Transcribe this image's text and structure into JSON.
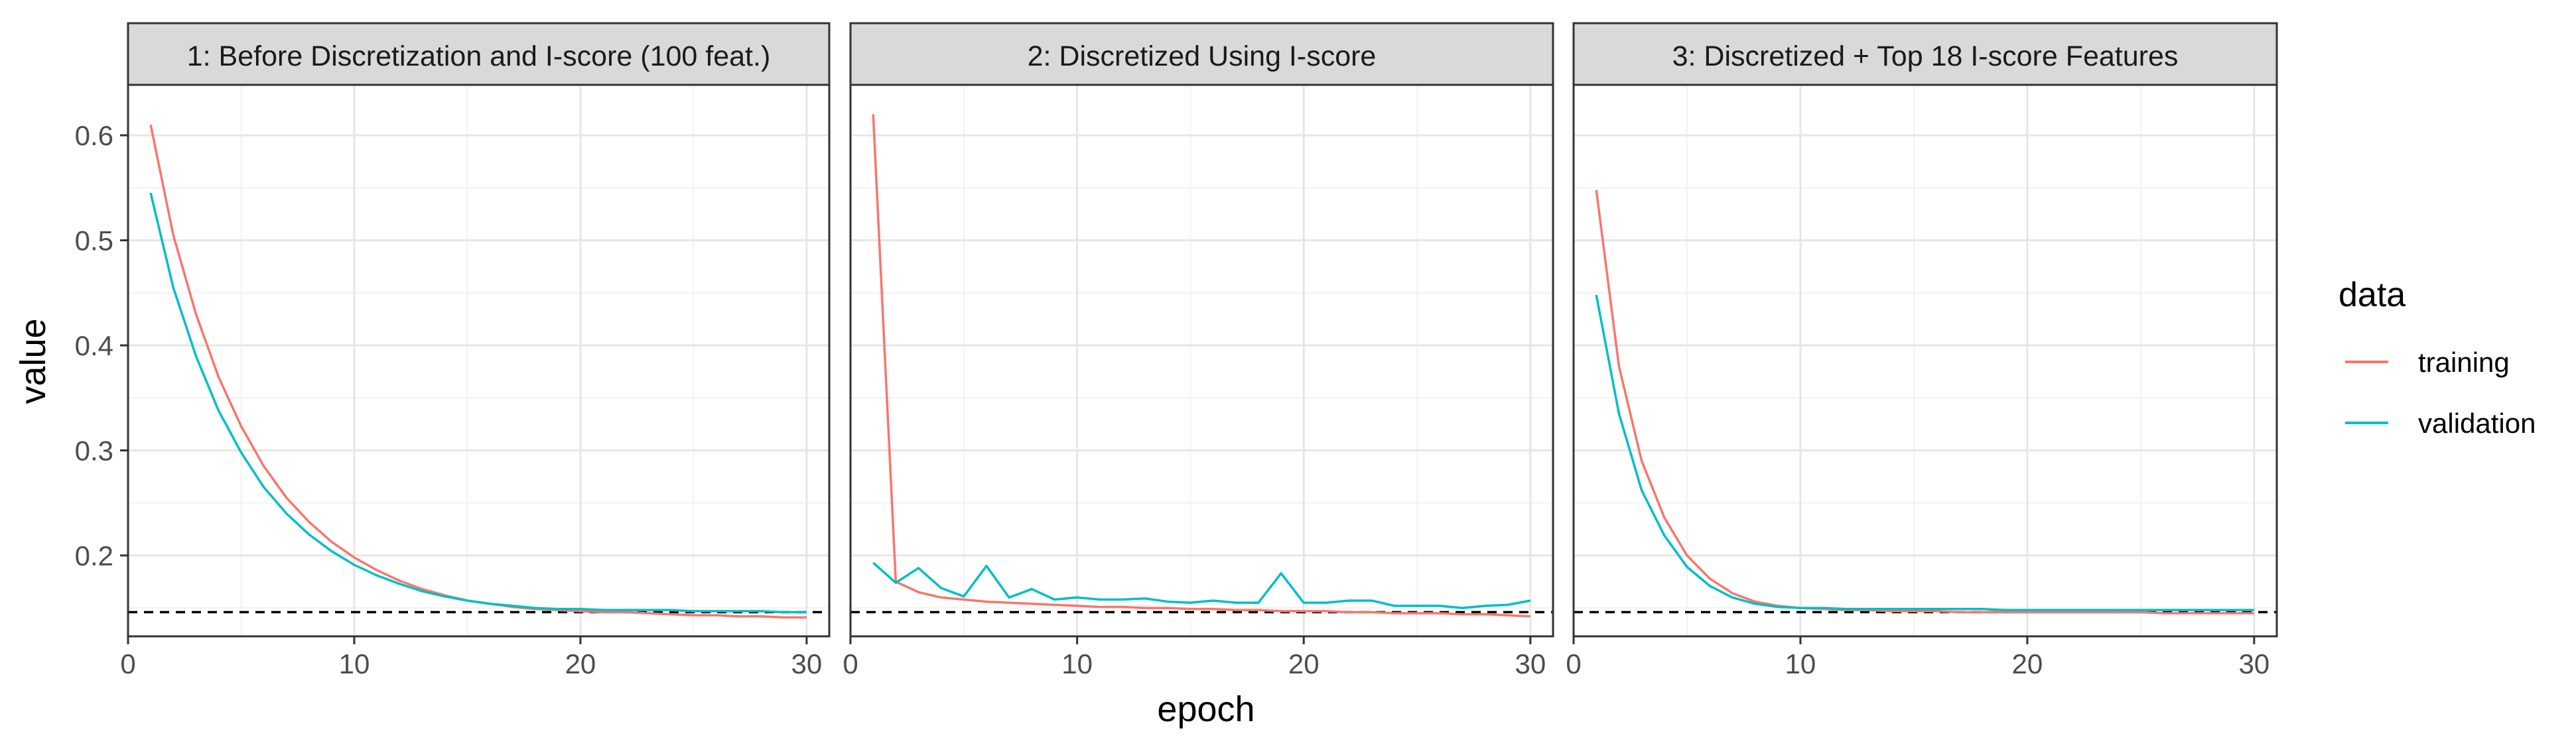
{
  "chart_data": {
    "type": "line",
    "xlabel": "epoch",
    "ylabel": "value",
    "xlim": [
      0,
      31
    ],
    "ylim": [
      0.123,
      0.648
    ],
    "x_ticks": [
      0,
      10,
      20,
      30
    ],
    "y_ticks": [
      0.2,
      0.3,
      0.4,
      0.5,
      0.6
    ],
    "grid": true,
    "reference_line": {
      "y": 0.146,
      "style": "dashed",
      "color": "#000000"
    },
    "legend": {
      "title": "data",
      "position": "right",
      "entries": [
        {
          "name": "training",
          "color": "#F8766D"
        },
        {
          "name": "validation",
          "color": "#00BFC4"
        }
      ]
    },
    "x": [
      1,
      2,
      3,
      4,
      5,
      6,
      7,
      8,
      9,
      10,
      11,
      12,
      13,
      14,
      15,
      16,
      17,
      18,
      19,
      20,
      21,
      22,
      23,
      24,
      25,
      26,
      27,
      28,
      29,
      30
    ],
    "panels": [
      {
        "title": "1: Before Discretization and I-score (100 feat.)",
        "series": [
          {
            "name": "training",
            "color": "#F8766D",
            "values": [
              0.61,
              0.505,
              0.43,
              0.37,
              0.323,
              0.285,
              0.255,
              0.232,
              0.213,
              0.198,
              0.186,
              0.176,
              0.168,
              0.162,
              0.157,
              0.154,
              0.151,
              0.149,
              0.148,
              0.147,
              0.146,
              0.146,
              0.145,
              0.144,
              0.143,
              0.143,
              0.142,
              0.142,
              0.141,
              0.141
            ]
          },
          {
            "name": "validation",
            "color": "#00BFC4",
            "values": [
              0.545,
              0.455,
              0.39,
              0.338,
              0.298,
              0.265,
              0.24,
              0.22,
              0.204,
              0.191,
              0.181,
              0.173,
              0.166,
              0.161,
              0.157,
              0.154,
              0.152,
              0.15,
              0.149,
              0.149,
              0.148,
              0.148,
              0.148,
              0.148,
              0.147,
              0.147,
              0.147,
              0.147,
              0.146,
              0.146
            ]
          }
        ]
      },
      {
        "title": "2: Discretized Using I-score",
        "series": [
          {
            "name": "training",
            "color": "#F8766D",
            "values": [
              0.62,
              0.175,
              0.165,
              0.16,
              0.158,
              0.156,
              0.155,
              0.154,
              0.153,
              0.152,
              0.151,
              0.151,
              0.15,
              0.15,
              0.149,
              0.149,
              0.148,
              0.148,
              0.147,
              0.147,
              0.147,
              0.146,
              0.146,
              0.145,
              0.145,
              0.145,
              0.144,
              0.144,
              0.143,
              0.142
            ]
          },
          {
            "name": "validation",
            "color": "#00BFC4",
            "values": [
              0.193,
              0.174,
              0.188,
              0.169,
              0.161,
              0.19,
              0.16,
              0.168,
              0.158,
              0.16,
              0.158,
              0.158,
              0.159,
              0.156,
              0.155,
              0.157,
              0.155,
              0.155,
              0.183,
              0.155,
              0.155,
              0.157,
              0.157,
              0.152,
              0.152,
              0.152,
              0.15,
              0.152,
              0.153,
              0.157
            ]
          }
        ]
      },
      {
        "title": "3: Discretized + Top 18 I-score Features",
        "series": [
          {
            "name": "training",
            "color": "#F8766D",
            "values": [
              0.548,
              0.38,
              0.29,
              0.236,
              0.2,
              0.178,
              0.164,
              0.156,
              0.152,
              0.15,
              0.149,
              0.148,
              0.148,
              0.147,
              0.147,
              0.147,
              0.146,
              0.146,
              0.146,
              0.146,
              0.146,
              0.146,
              0.146,
              0.146,
              0.146,
              0.145,
              0.145,
              0.145,
              0.145,
              0.145
            ]
          },
          {
            "name": "validation",
            "color": "#00BFC4",
            "values": [
              0.448,
              0.335,
              0.262,
              0.219,
              0.189,
              0.171,
              0.16,
              0.154,
              0.151,
              0.15,
              0.15,
              0.149,
              0.149,
              0.149,
              0.149,
              0.149,
              0.149,
              0.149,
              0.148,
              0.148,
              0.148,
              0.148,
              0.148,
              0.148,
              0.148,
              0.148,
              0.148,
              0.148,
              0.148,
              0.148
            ]
          }
        ]
      }
    ]
  }
}
